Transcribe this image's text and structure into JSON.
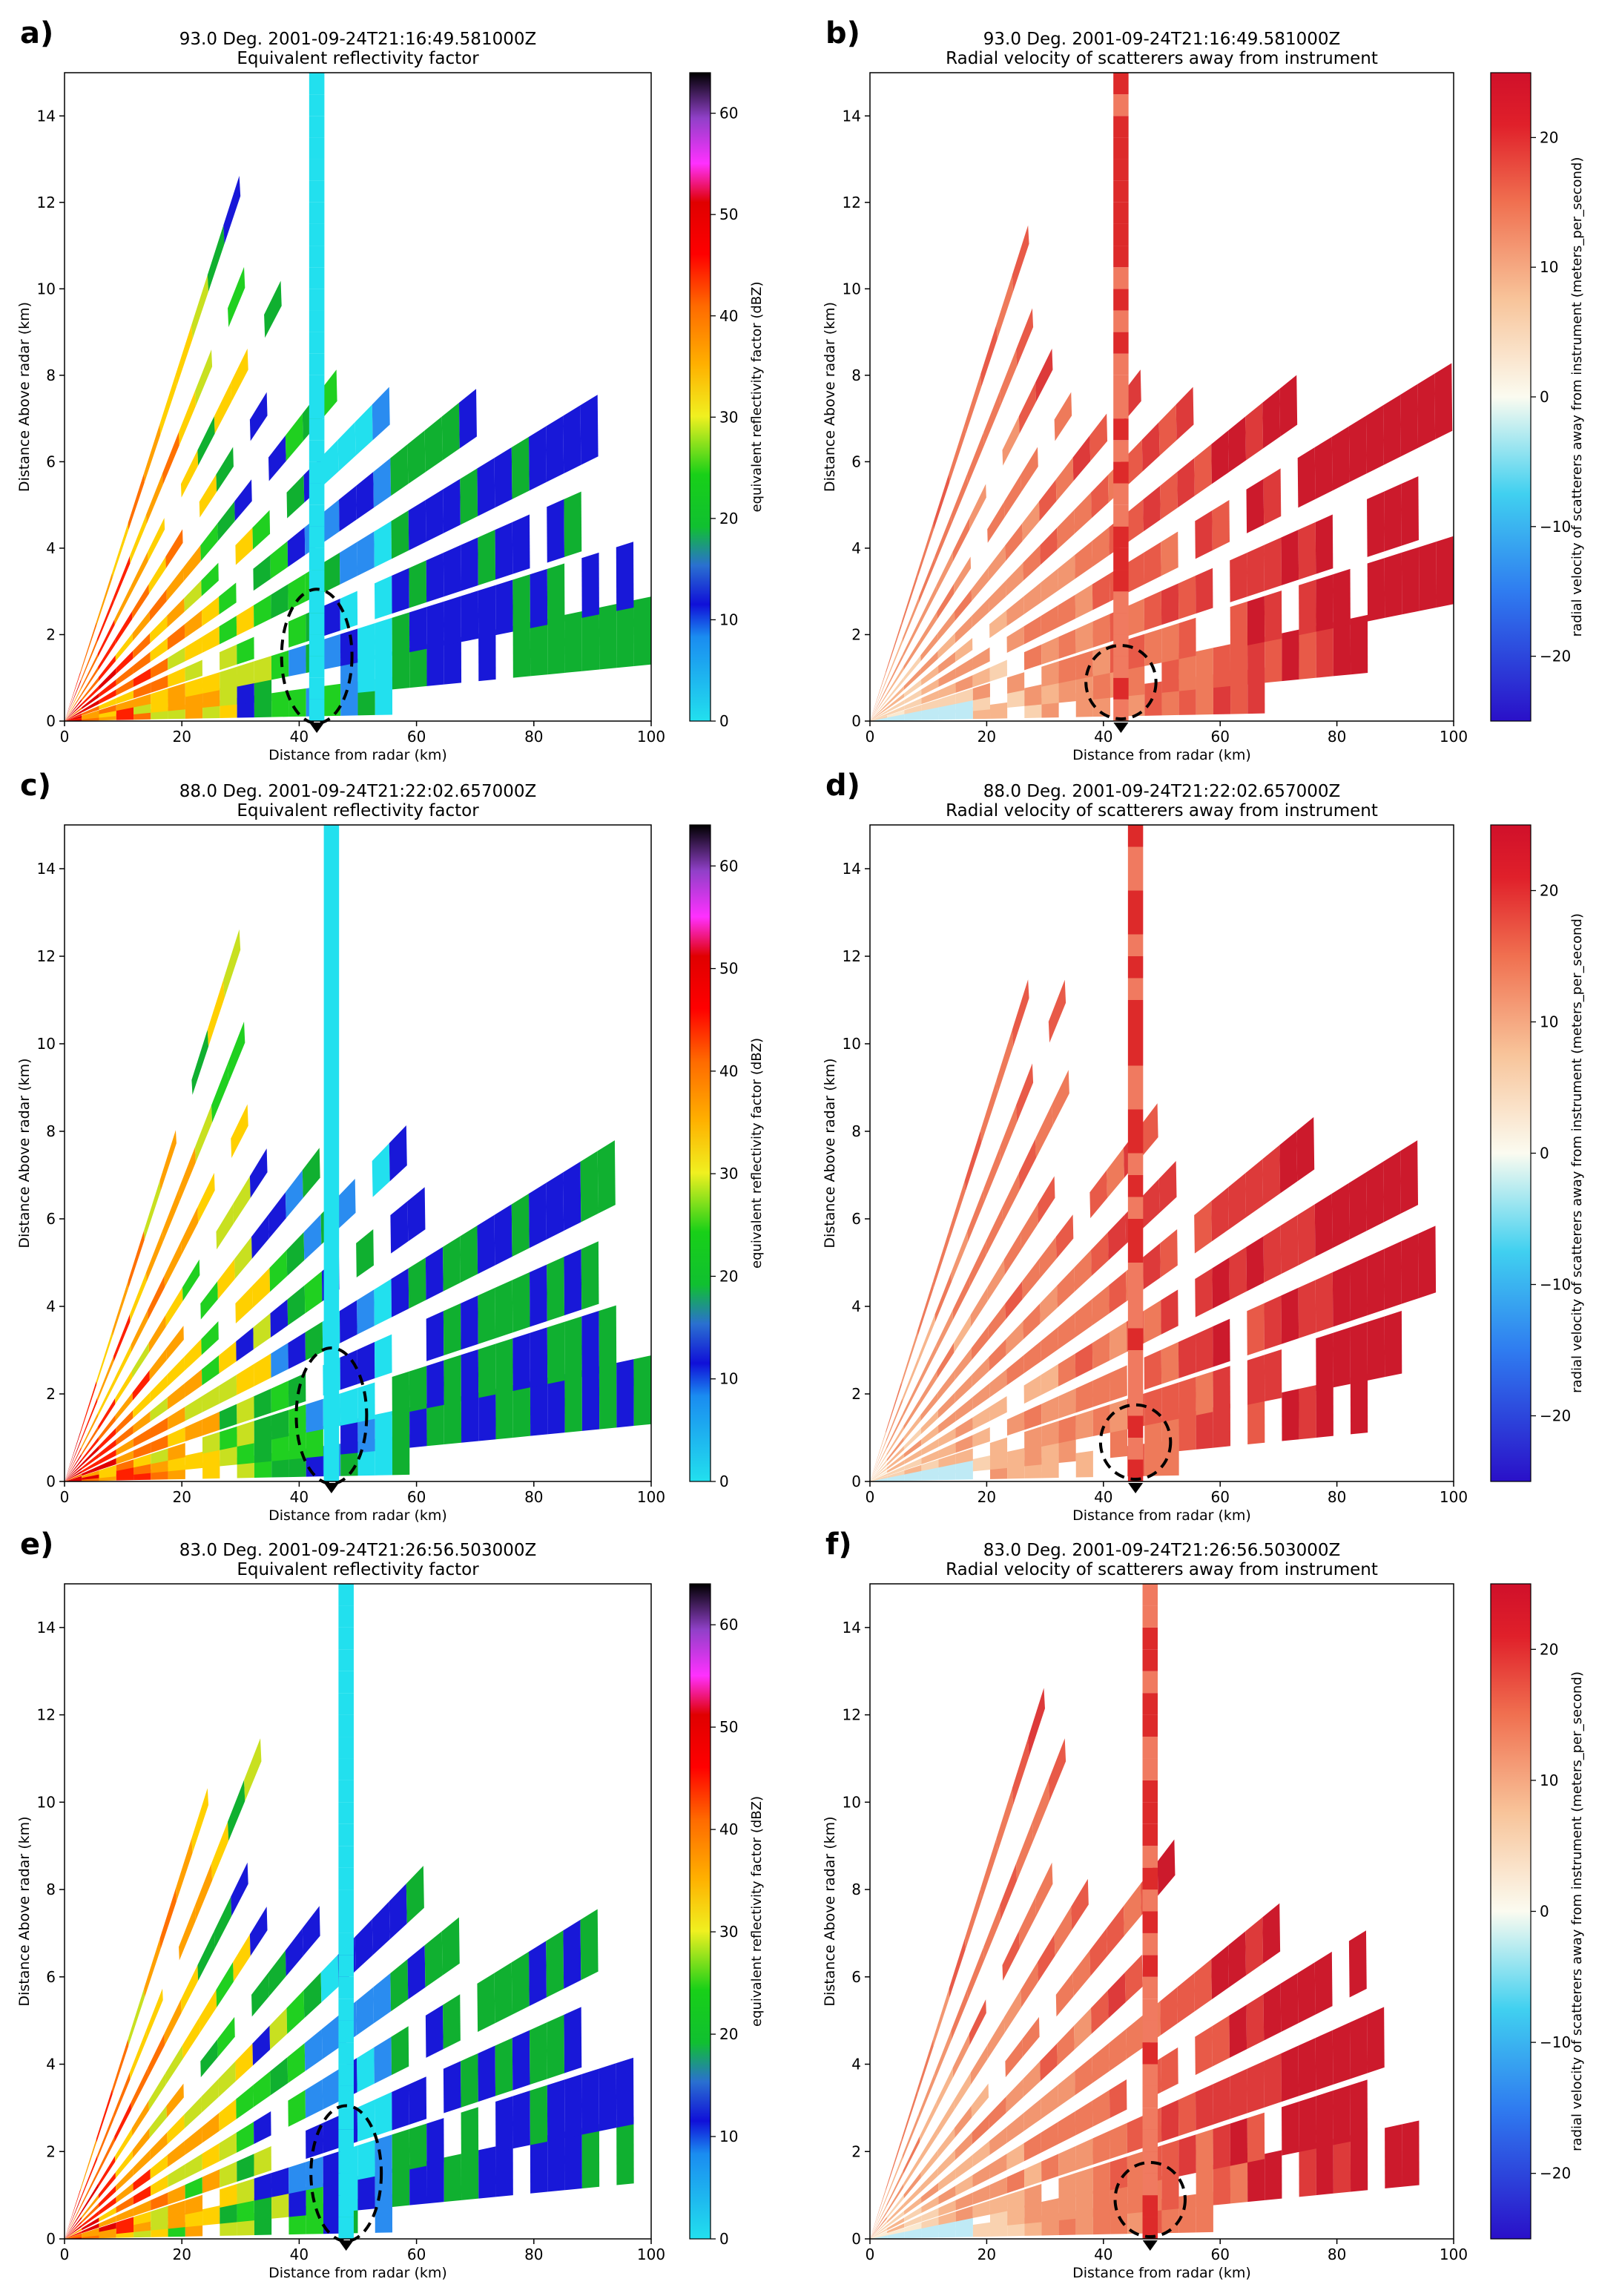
{
  "figure": {
    "description_type": "radar RHI multi-panel figure"
  },
  "chart_data": [
    {
      "panel": "a)",
      "type": "heatmap",
      "field": "reflectivity",
      "title_line1": "93.0 Deg. 2001-09-24T21:16:49.581000Z",
      "title_line2": "Equivalent reflectivity factor",
      "xlabel": "Distance from radar (km)",
      "ylabel": "Distance Above radar (km)",
      "xlim": [
        0,
        100
      ],
      "ylim": [
        0,
        15
      ],
      "xticks": [
        "0",
        "20",
        "40",
        "60",
        "80",
        "100"
      ],
      "yticks": [
        "0",
        "2",
        "4",
        "6",
        "8",
        "10",
        "12",
        "14"
      ],
      "colorbar_label": "equivalent reflectivity factor (dBZ)",
      "colorbar_range": [
        0,
        64
      ],
      "colorbar_ticks": [
        "0",
        "10",
        "20",
        "30",
        "40",
        "50",
        "60"
      ],
      "annotation": "dashed ellipse near 43 km, 0-3 km"
    },
    {
      "panel": "b)",
      "type": "heatmap",
      "field": "velocity",
      "title_line1": "93.0 Deg. 2001-09-24T21:16:49.581000Z",
      "title_line2": "Radial velocity of scatterers away from instrument",
      "xlabel": "Distance from radar (km)",
      "ylabel": "Distance Above radar (km)",
      "xlim": [
        0,
        100
      ],
      "ylim": [
        0,
        15
      ],
      "xticks": [
        "0",
        "20",
        "40",
        "60",
        "80",
        "100"
      ],
      "yticks": [
        "0",
        "2",
        "4",
        "6",
        "8",
        "10",
        "12",
        "14"
      ],
      "colorbar_label": "radial velocity of scatterers away from instrument (meters_per_second)",
      "colorbar_range": [
        -25,
        25
      ],
      "colorbar_ticks": [
        "−20",
        "−10",
        "0",
        "10",
        "20"
      ],
      "annotation": "dashed ellipse near 43 km, 0-2 km"
    },
    {
      "panel": "c)",
      "type": "heatmap",
      "field": "reflectivity",
      "title_line1": "88.0 Deg. 2001-09-24T21:22:02.657000Z",
      "title_line2": "Equivalent reflectivity factor",
      "xlabel": "Distance from radar (km)",
      "ylabel": "Distance Above radar (km)",
      "xlim": [
        0,
        100
      ],
      "ylim": [
        0,
        15
      ],
      "xticks": [
        "0",
        "20",
        "40",
        "60",
        "80",
        "100"
      ],
      "yticks": [
        "0",
        "2",
        "4",
        "6",
        "8",
        "10",
        "12",
        "14"
      ],
      "colorbar_label": "equivalent reflectivity factor (dBZ)",
      "colorbar_range": [
        0,
        64
      ],
      "colorbar_ticks": [
        "0",
        "10",
        "20",
        "30",
        "40",
        "50",
        "60"
      ],
      "annotation": "dashed ellipse near 45 km, 0-3 km"
    },
    {
      "panel": "d)",
      "type": "heatmap",
      "field": "velocity",
      "title_line1": "88.0 Deg. 2001-09-24T21:22:02.657000Z",
      "title_line2": "Radial velocity of scatterers away from instrument",
      "xlabel": "Distance from radar (km)",
      "ylabel": "Distance Above radar (km)",
      "xlim": [
        0,
        100
      ],
      "ylim": [
        0,
        15
      ],
      "xticks": [
        "0",
        "20",
        "40",
        "60",
        "80",
        "100"
      ],
      "yticks": [
        "0",
        "2",
        "4",
        "6",
        "8",
        "10",
        "12",
        "14"
      ],
      "colorbar_label": "radial velocity of scatterers away from instrument (meters_per_second)",
      "colorbar_range": [
        -25,
        25
      ],
      "colorbar_ticks": [
        "−20",
        "−10",
        "0",
        "10",
        "20"
      ],
      "annotation": "dashed ellipse near 45 km, 0-2 km"
    },
    {
      "panel": "e)",
      "type": "heatmap",
      "field": "reflectivity",
      "title_line1": "83.0 Deg. 2001-09-24T21:26:56.503000Z",
      "title_line2": "Equivalent reflectivity factor",
      "xlabel": "Distance from radar (km)",
      "ylabel": "Distance Above radar (km)",
      "xlim": [
        0,
        100
      ],
      "ylim": [
        0,
        15
      ],
      "xticks": [
        "0",
        "20",
        "40",
        "60",
        "80",
        "100"
      ],
      "yticks": [
        "0",
        "2",
        "4",
        "6",
        "8",
        "10",
        "12",
        "14"
      ],
      "colorbar_label": "equivalent reflectivity factor (dBZ)",
      "colorbar_range": [
        0,
        64
      ],
      "colorbar_ticks": [
        "0",
        "10",
        "20",
        "30",
        "40",
        "50",
        "60"
      ],
      "annotation": "dashed ellipse near 48 km, 0-3 km"
    },
    {
      "panel": "f)",
      "type": "heatmap",
      "field": "velocity",
      "title_line1": "83.0 Deg. 2001-09-24T21:26:56.503000Z",
      "title_line2": "Radial velocity of scatterers away from instrument",
      "xlabel": "Distance from radar (km)",
      "ylabel": "Distance Above radar (km)",
      "xlim": [
        0,
        100
      ],
      "ylim": [
        0,
        15
      ],
      "xticks": [
        "0",
        "20",
        "40",
        "60",
        "80",
        "100"
      ],
      "yticks": [
        "0",
        "2",
        "4",
        "6",
        "8",
        "10",
        "12",
        "14"
      ],
      "colorbar_label": "radial velocity of scatterers away from instrument (meters_per_second)",
      "colorbar_range": [
        -25,
        25
      ],
      "colorbar_ticks": [
        "−20",
        "−10",
        "0",
        "10",
        "20"
      ],
      "annotation": "dashed ellipse near 48 km, 0-2 km"
    }
  ]
}
